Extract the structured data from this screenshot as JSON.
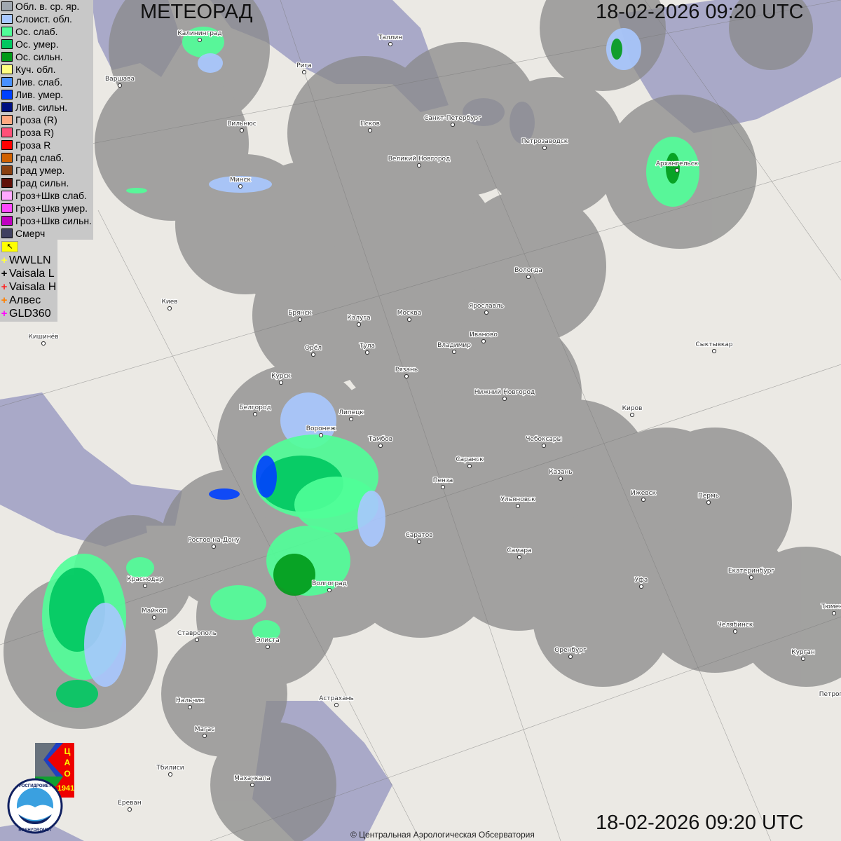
{
  "header": {
    "title": "МЕТЕОРАД",
    "timestamp_top": "18-02-2026  09:20 UTC",
    "timestamp_bottom": "18-02-2026  09:20 UTC"
  },
  "legend": [
    {
      "label": "Обл. в. ср. яр.",
      "color": "#a0a8b0"
    },
    {
      "label": "Слоист. обл.",
      "color": "#a8c8ff"
    },
    {
      "label": "Ос. слаб.",
      "color": "#50ff98"
    },
    {
      "label": "Ос. умер.",
      "color": "#00c860"
    },
    {
      "label": "Ос. сильн.",
      "color": "#009a18"
    },
    {
      "label": "Куч. обл.",
      "color": "#ffff80"
    },
    {
      "label": "Лив. слаб.",
      "color": "#4890ff"
    },
    {
      "label": "Лив. умер.",
      "color": "#0040ff"
    },
    {
      "label": "Лив. сильн.",
      "color": "#001080"
    },
    {
      "label": "Гроза (R)",
      "color": "#ffa880"
    },
    {
      "label": "Гроза R)",
      "color": "#ff5078"
    },
    {
      "label": "Гроза R",
      "color": "#ff0000"
    },
    {
      "label": "Град слаб.",
      "color": "#d06000"
    },
    {
      "label": "Град умер.",
      "color": "#8a4010"
    },
    {
      "label": "Град сильн.",
      "color": "#601008"
    },
    {
      "label": "Гроз+Шкв слаб.",
      "color": "#ffa8ff"
    },
    {
      "label": "Гроз+Шкв умер.",
      "color": "#ff48ff"
    },
    {
      "label": "Гроз+Шкв сильн.",
      "color": "#c000c0"
    },
    {
      "label": "Смерч",
      "color": "#404060"
    }
  ],
  "lightning": {
    "toggle_icon": "lightning-flag-icon",
    "toggle_glyph": "↖",
    "sources": [
      {
        "label": "WWLLN",
        "color": "#ffff40"
      },
      {
        "label": "Vaisala L",
        "color": "#000000"
      },
      {
        "label": "Vaisala H",
        "color": "#ff2020"
      },
      {
        "label": "Алвес",
        "color": "#ff8000"
      },
      {
        "label": "GLD360",
        "color": "#ff00ff"
      }
    ]
  },
  "cities": [
    "Калининград",
    "Таллин",
    "Рига",
    "Варшава",
    "Санкт-Петербург",
    "Псков",
    "Вильнюс",
    "Петрозаводск",
    "Великий Новгород",
    "Архангельск",
    "Минск",
    "Вологда",
    "Киев",
    "Брянск",
    "Калуга",
    "Москва",
    "Ярославль",
    "Иваново",
    "Кишинёв",
    "Орёл",
    "Тула",
    "Владимир",
    "Сыктывкар",
    "Рязань",
    "Курск",
    "Нижний Новгород",
    "Киров",
    "Белгород",
    "Липецк",
    "Воронеж",
    "Тамбов",
    "Чебоксары",
    "Саранск",
    "Казань",
    "Пенза",
    "Ижевск",
    "Пермь",
    "Ульяновск",
    "Саратов",
    "Ростов-на-Дону",
    "Самара",
    "Краснодар",
    "Уфа",
    "Екатеринбург",
    "Волгоград",
    "Майкоп",
    "Тюмень",
    "Челябинск",
    "Ставрополь",
    "Элиста",
    "Оренбург",
    "Курган",
    "Нальчик",
    "Астрахань",
    "Петропавловск",
    "Магас",
    "Тбилиси",
    "Махачкала",
    "Ереван"
  ],
  "logos": {
    "cao_text": "ЦАО 1941",
    "roshydromet_text": "РОСГИДРОМЕТ ROSHYDROMET"
  },
  "footer": {
    "copyright": "© Центральная Аэрологическая Обсерватория"
  },
  "colors": {
    "radar_coverage": "#8a8a8a",
    "water": "#a9a9c8",
    "land": "#ebe9e4"
  }
}
